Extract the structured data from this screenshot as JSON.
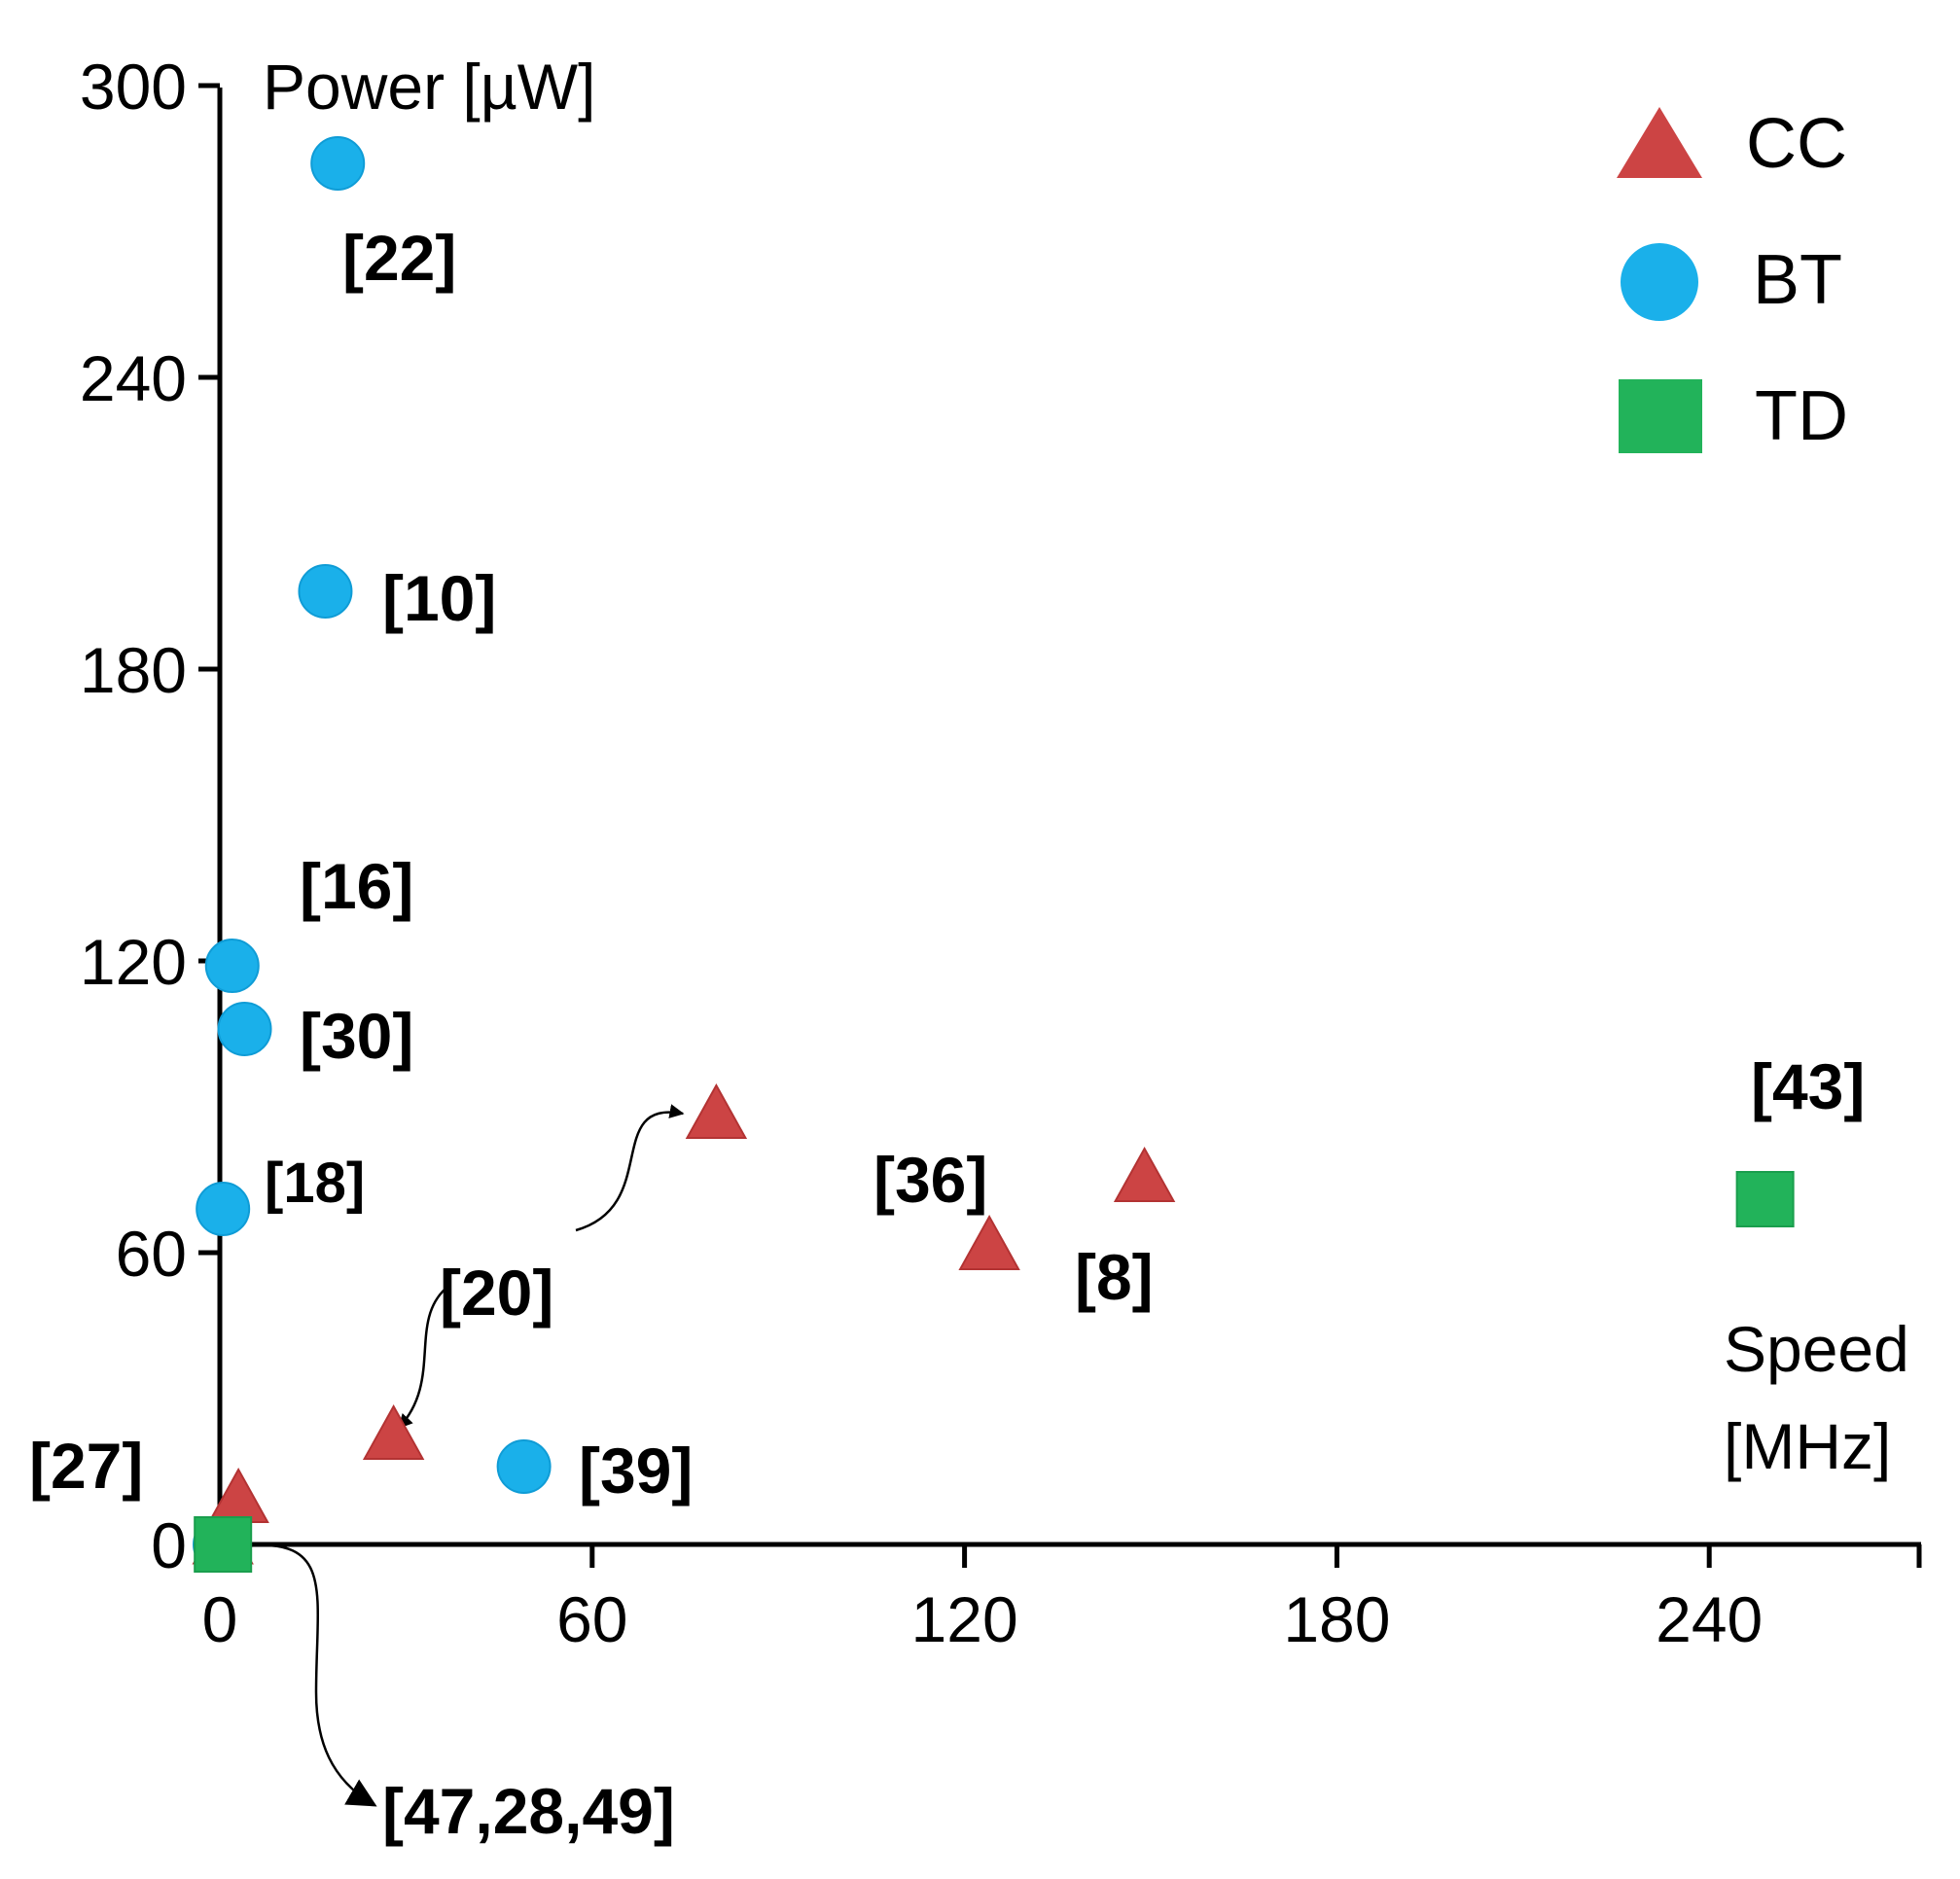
{
  "chart_data": {
    "type": "scatter",
    "title": "",
    "xlabel": "Speed [MHz]",
    "xlabel_lines": [
      "Speed",
      "[MHz]"
    ],
    "ylabel": "Power [µW]",
    "xlim": [
      0,
      272
    ],
    "ylim": [
      0,
      300
    ],
    "xticks": [
      0,
      60,
      120,
      180,
      240
    ],
    "yticks": [
      0,
      60,
      120,
      180,
      240,
      300
    ],
    "xtick_labels": [
      "0",
      "60",
      "120",
      "180",
      "240"
    ],
    "ytick_labels": [
      "0",
      "60",
      "120",
      "180",
      "240",
      "300"
    ],
    "grid": false,
    "legend_position": "top-right",
    "colors": {
      "CC": "#cc4444",
      "BT": "#1ab0ea",
      "TD": "#22b35a"
    },
    "series": [
      {
        "name": "CC",
        "marker": "triangle",
        "points": [
          {
            "x": 0.5,
            "y": 0.5
          },
          {
            "x": 3,
            "y": 9
          },
          {
            "x": 28,
            "y": 22
          },
          {
            "x": 80,
            "y": 88
          },
          {
            "x": 124,
            "y": 61
          },
          {
            "x": 149,
            "y": 75
          }
        ]
      },
      {
        "name": "BT",
        "marker": "circle",
        "points": [
          {
            "x": 19,
            "y": 284
          },
          {
            "x": 17,
            "y": 196
          },
          {
            "x": 2,
            "y": 119
          },
          {
            "x": 4,
            "y": 106
          },
          {
            "x": 0.5,
            "y": 69
          },
          {
            "x": 49,
            "y": 16
          },
          {
            "x": 0,
            "y": 0
          }
        ]
      },
      {
        "name": "TD",
        "marker": "square",
        "points": [
          {
            "x": 249,
            "y": 71
          },
          {
            "x": 0.5,
            "y": 0
          }
        ]
      }
    ],
    "annotations": [
      "[22]",
      "[10]",
      "[16]",
      "[30]",
      "[18]",
      "[20]",
      "[36]",
      "[8]",
      "[43]",
      "[27]",
      "[39]",
      "[47,28,49]"
    ]
  }
}
